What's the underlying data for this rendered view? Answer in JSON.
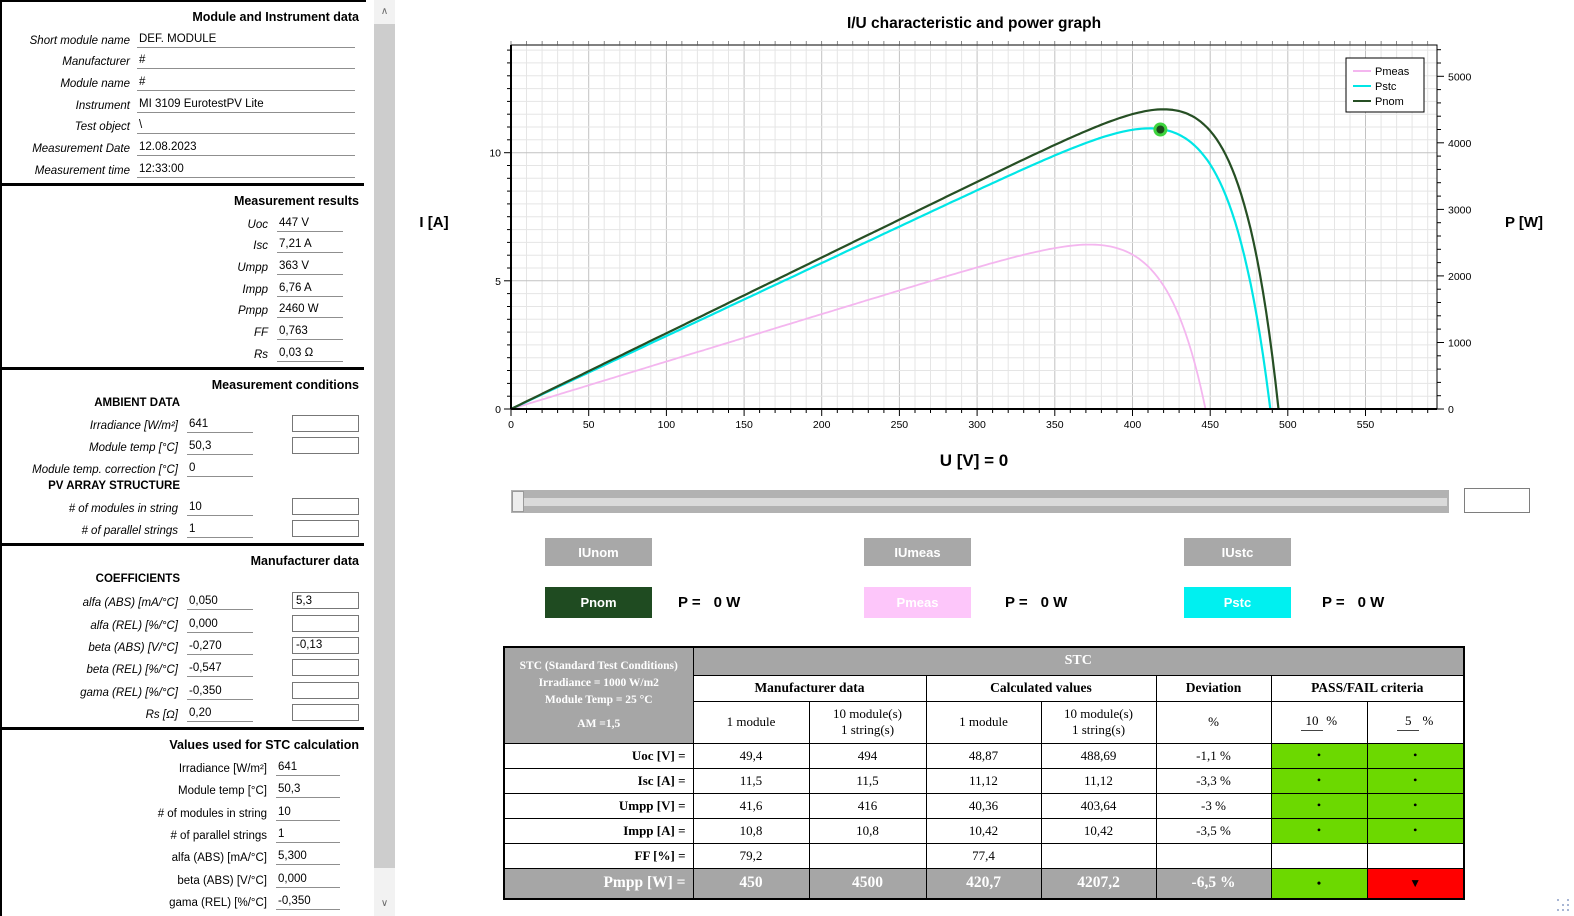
{
  "left_panel": {
    "module": {
      "title": "Module and Instrument data",
      "rows": [
        {
          "label": "Short module name",
          "value": "DEF. MODULE"
        },
        {
          "label": "Manufacturer",
          "value": "#"
        },
        {
          "label": "Module name",
          "value": "#"
        },
        {
          "label": "Instrument",
          "value": "MI 3109 EurotestPV Lite"
        },
        {
          "label": "Test object",
          "value": "\\"
        },
        {
          "label": "Measurement Date",
          "value": "12.08.2023"
        },
        {
          "label": "Measurement time",
          "value": "12:33:00"
        }
      ]
    },
    "results": {
      "title": "Measurement results",
      "rows": [
        {
          "label": "Uoc",
          "value": "447 V"
        },
        {
          "label": "Isc",
          "value": "7,21 A"
        },
        {
          "label": "Umpp",
          "value": "363 V"
        },
        {
          "label": "Impp",
          "value": "6,76 A"
        },
        {
          "label": "Pmpp",
          "value": "2460 W"
        },
        {
          "label": "FF",
          "value": "0,763"
        },
        {
          "label": "Rs",
          "value": "0,03 Ω"
        }
      ]
    },
    "conditions": {
      "title": "Measurement conditions",
      "group1": "AMBIENT DATA",
      "rows1": [
        {
          "label": "Irradiance  [W/m²]",
          "value": "641",
          "box": ""
        },
        {
          "label": "Module temp  [°C]",
          "value": "50,3",
          "box": ""
        },
        {
          "label": "Module temp. correction  [°C]",
          "value": "0"
        }
      ],
      "group2": "PV ARRAY STRUCTURE",
      "rows2": [
        {
          "label": "# of modules in string",
          "value": "10",
          "box": ""
        },
        {
          "label": "# of parallel strings",
          "value": "1",
          "box": ""
        }
      ]
    },
    "manufacturer": {
      "title": "Manufacturer data",
      "group": "COEFFICIENTS",
      "rows": [
        {
          "label": "alfa (ABS) [mA/°C]",
          "value": "0,050",
          "box": "5,3"
        },
        {
          "label": "alfa (REL) [%/°C]",
          "value": "0,000",
          "box": ""
        },
        {
          "label": "beta (ABS) [V/°C]",
          "value": "-0,270",
          "box": "-0,13"
        },
        {
          "label": "beta (REL) [%/°C]",
          "value": "-0,547",
          "box": ""
        },
        {
          "label": "gama (REL) [%/°C]",
          "value": "-0,350",
          "box": ""
        },
        {
          "label": "Rs [Ω]",
          "value": "0,20",
          "box": ""
        }
      ]
    },
    "stc_values": {
      "title": "Values used for STC calculation",
      "rows": [
        {
          "label": "Irradiance [W/m²]",
          "value": "641"
        },
        {
          "label": "Module temp [°C]",
          "value": "50,3"
        },
        {
          "label": "# of modules in string",
          "value": "10"
        },
        {
          "label": "# of parallel strings",
          "value": "1"
        },
        {
          "label": "alfa (ABS) [mA/°C]",
          "value": "5,300"
        },
        {
          "label": "beta (ABS) [V/°C]",
          "value": "0,000"
        },
        {
          "label": "gama (REL) [%/°C]",
          "value": "-0,350"
        }
      ]
    }
  },
  "chart_data": {
    "type": "line",
    "title": "I/U characteristic and power graph",
    "x_axis": {
      "min": 0,
      "max": 596,
      "major": 50,
      "minor": 10,
      "ticks": [
        0,
        50,
        100,
        150,
        200,
        250,
        300,
        350,
        400,
        450,
        500,
        550
      ]
    },
    "y_left": {
      "label": "I [A]",
      "min": 0,
      "max": 14.2,
      "major": 5,
      "minor": 0.5,
      "ticks": [
        0,
        5,
        10
      ]
    },
    "y_right": {
      "label": "P [W]",
      "min": 0,
      "max": 5470,
      "major": 1000,
      "minor": 200,
      "ticks": [
        0,
        1000,
        2000,
        3000,
        4000,
        5000
      ]
    },
    "cursor_label": "U [V] = 0",
    "grid": true,
    "legend_position": "top-right",
    "series": [
      {
        "name": "Pmeas",
        "color": "#f4b6ef",
        "width": 1.8,
        "isc": 7.21,
        "uoc": 447,
        "umpp": 363,
        "pmpp": 2460
      },
      {
        "name": "Pstc",
        "color": "#00e6e6",
        "width": 2.2,
        "isc": 11.12,
        "uoc": 488.69,
        "umpp": 403.64,
        "pmpp": 4207.2
      },
      {
        "name": "Pnom",
        "color": "#264f24",
        "width": 2.2,
        "isc": 11.5,
        "uoc": 494,
        "umpp": 416,
        "pmpp": 4500
      }
    ],
    "marker": {
      "series": "Pstc",
      "u": 418,
      "p": 4200,
      "fill": "#1d4a1d",
      "ring": "#3ed43e"
    }
  },
  "controls": {
    "cursor_box_value": "",
    "curve_button_color": "#a8a8a8",
    "curve_buttons": [
      {
        "label": "IUnom"
      },
      {
        "label": "IUmeas"
      },
      {
        "label": "IUstc"
      }
    ],
    "power_rows": [
      {
        "button": "Pnom",
        "color": "#1f4b21",
        "p_eq": "P =",
        "p_val": "0 W"
      },
      {
        "button": "Pmeas",
        "color": "#fdc6fa",
        "p_eq": "P =",
        "p_val": "0 W"
      },
      {
        "button": "Pstc",
        "color": "#00f0f0",
        "p_eq": "P =",
        "p_val": "0 W"
      }
    ]
  },
  "stc_table": {
    "corner": [
      "STC (Standard Test Conditions)",
      "Irradiance = 1000 W/m2",
      "Module Temp = 25 °C",
      "AM =1,5"
    ],
    "stc_header": "STC",
    "group_headers": [
      "Manufacturer data",
      "Calculated values",
      "Deviation",
      "PASS/FAIL criteria"
    ],
    "col_1module": "1 module",
    "col_10module_l1": "10 module(s)",
    "col_10module_l2": "1 string(s)",
    "dev_unit": "%",
    "criteria": [
      {
        "value": "10",
        "unit": "%"
      },
      {
        "value": "5",
        "unit": "%"
      }
    ],
    "pass_dot": "•",
    "fail_mark": "▼",
    "colors": {
      "pass": "#6cd900",
      "fail": "#ff0000",
      "header_gray": "#a6a6a6"
    },
    "rows": [
      {
        "label": "Uoc [V] =",
        "m1": "49,4",
        "m10": "494",
        "c1": "48,87",
        "c10": "488,69",
        "dev": "-1,1 %"
      },
      {
        "label": "Isc [A] =",
        "m1": "11,5",
        "m10": "11,5",
        "c1": "11,12",
        "c10": "11,12",
        "dev": "-3,3 %"
      },
      {
        "label": "Umpp [V] =",
        "m1": "41,6",
        "m10": "416",
        "c1": "40,36",
        "c10": "403,64",
        "dev": "-3 %"
      },
      {
        "label": "Impp [A] =",
        "m1": "10,8",
        "m10": "10,8",
        "c1": "10,42",
        "c10": "10,42",
        "dev": "-3,5 %"
      },
      {
        "label": "FF [%] =",
        "m1": "79,2",
        "m10": "",
        "c1": "77,4",
        "c10": "",
        "dev": ""
      },
      {
        "label": "Pmpp [W] =",
        "m1": "450",
        "m10": "4500",
        "c1": "420,7",
        "c10": "4207,2",
        "dev": "-6,5 %"
      }
    ]
  }
}
